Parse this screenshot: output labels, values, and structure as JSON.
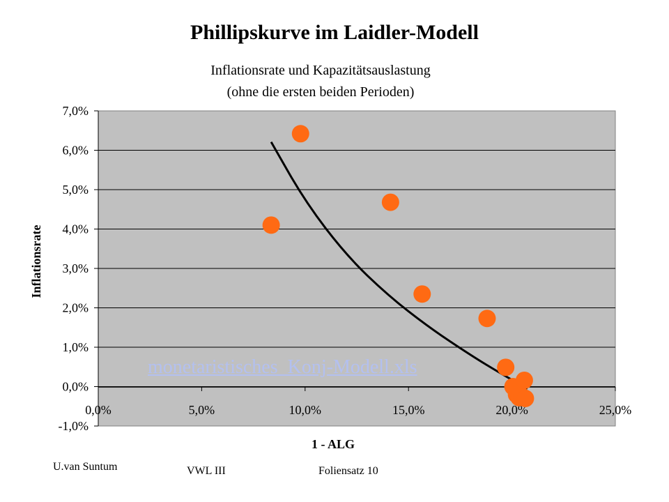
{
  "chart_data": {
    "type": "scatter",
    "title": "Phillipskurve im Laidler-Modell",
    "subtitle": [
      "Inflationsrate und Kapazitätsauslastung",
      "(ohne die ersten beiden Perioden)"
    ],
    "xlabel": "1 - ALG",
    "ylabel": "Inflationsrate",
    "xlim": [
      0,
      0.25
    ],
    "ylim": [
      -0.01,
      0.07
    ],
    "x_ticks": [
      "0,0%",
      "5,0%",
      "10,0%",
      "15,0%",
      "20,0%",
      "25,0%"
    ],
    "y_ticks": [
      "7,0%",
      "6,0%",
      "5,0%",
      "4,0%",
      "3,0%",
      "2,0%",
      "1,0%",
      "0,0%",
      "-1,0%"
    ],
    "grid": true,
    "colors": {
      "points": "#ff6a13",
      "trend": "#000000",
      "plot_bg": "#c0c0c0"
    },
    "series": [
      {
        "values": [
          {
            "x": 0.0836,
            "y": 0.041
          },
          {
            "x": 0.0978,
            "y": 0.0642
          },
          {
            "x": 0.1413,
            "y": 0.0468
          },
          {
            "x": 0.1566,
            "y": 0.0235
          },
          {
            "x": 0.188,
            "y": 0.0173
          },
          {
            "x": 0.197,
            "y": 0.0049
          },
          {
            "x": 0.2005,
            "y": 0.0
          },
          {
            "x": 0.2022,
            "y": -0.002
          },
          {
            "x": 0.2035,
            "y": -0.0028
          },
          {
            "x": 0.2048,
            "y": -0.0025
          },
          {
            "x": 0.2065,
            "y": -0.003
          },
          {
            "x": 0.206,
            "y": 0.0016
          }
        ]
      }
    ],
    "trendline": [
      {
        "x": 0.0836,
        "y": 0.0621
      },
      {
        "x": 0.1,
        "y": 0.047
      },
      {
        "x": 0.12,
        "y": 0.0333
      },
      {
        "x": 0.14,
        "y": 0.0232
      },
      {
        "x": 0.16,
        "y": 0.015
      },
      {
        "x": 0.18,
        "y": 0.008
      },
      {
        "x": 0.195,
        "y": 0.0032
      },
      {
        "x": 0.2075,
        "y": -0.0005
      }
    ]
  },
  "link_text": "monetaristisches_Konj-Modell.xls",
  "footer": {
    "author": "U.van Suntum",
    "course": "VWL III",
    "slide": "Foliensatz 10"
  }
}
